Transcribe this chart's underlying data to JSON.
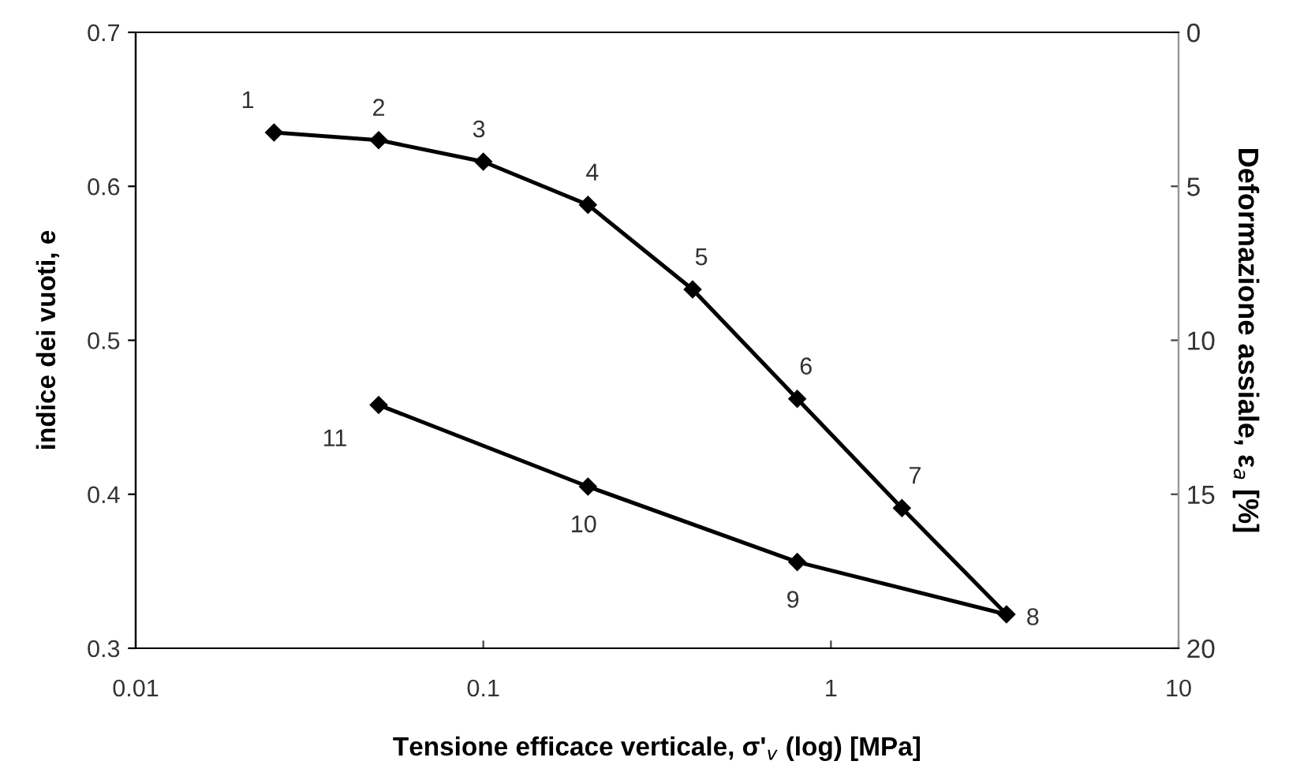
{
  "chart_data": {
    "type": "line",
    "xlabel": "Tensione efficace verticale, σ'$_{v}$ (log) [MPa]",
    "ylabel": "indice dei vuoti, e",
    "y2label": "Deformazione assiale, ε$_{a}$ [%]",
    "log": "x",
    "xlim": [
      0.01,
      10
    ],
    "xticks": [
      0.01,
      0.1,
      1,
      10
    ],
    "ylim": [
      0.3,
      0.7
    ],
    "yticks": [
      0.3,
      0.4,
      0.5,
      0.6,
      0.7
    ],
    "y2lim": [
      20,
      0
    ],
    "y2ticks": [
      0,
      5,
      10,
      15,
      20
    ],
    "marker": "diamond",
    "line_style": "solid",
    "grid": false,
    "legend": false,
    "series": [
      {
        "color": "#000000",
        "x": [
          0.025,
          0.05,
          0.1,
          0.2,
          0.4,
          0.8,
          1.6,
          3.2,
          0.8,
          0.2,
          0.05
        ],
        "values": [
          0.635,
          0.63,
          0.616,
          0.588,
          0.533,
          0.462,
          0.391,
          0.322,
          0.356,
          0.405,
          0.458
        ]
      }
    ],
    "annotations": [
      {
        "text": "1",
        "x": 0.025,
        "y": 0.635
      },
      {
        "text": "2",
        "x": 0.05,
        "y": 0.63
      },
      {
        "text": "3",
        "x": 0.1,
        "y": 0.616
      },
      {
        "text": "4",
        "x": 0.2,
        "y": 0.588
      },
      {
        "text": "5",
        "x": 0.4,
        "y": 0.533
      },
      {
        "text": "6",
        "x": 0.8,
        "y": 0.462
      },
      {
        "text": "7",
        "x": 1.6,
        "y": 0.391
      },
      {
        "text": "8",
        "x": 3.2,
        "y": 0.322
      },
      {
        "text": "9",
        "x": 0.8,
        "y": 0.356
      },
      {
        "text": "10",
        "x": 0.2,
        "y": 0.405
      },
      {
        "text": "11",
        "x": 0.05,
        "y": 0.458
      }
    ]
  }
}
